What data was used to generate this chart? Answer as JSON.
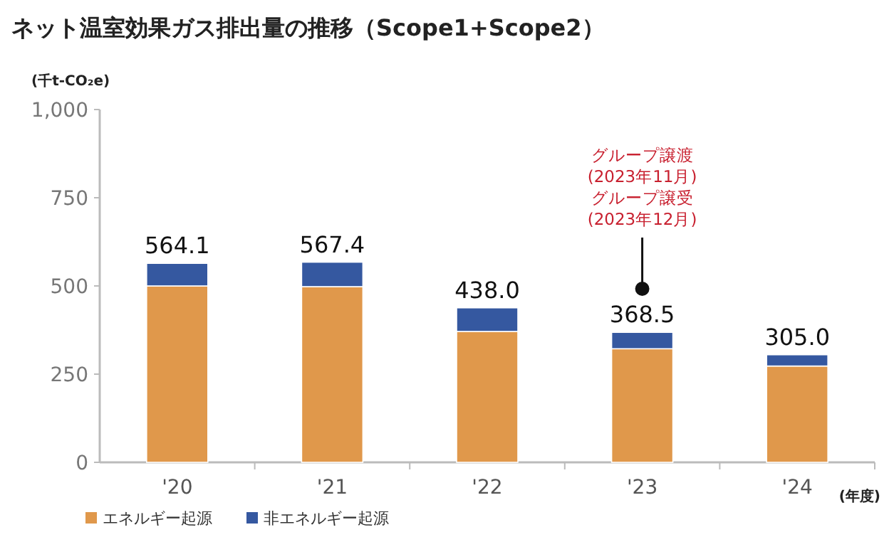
{
  "chart_data": {
    "type": "bar",
    "title": "ネット温室効果ガス排出量の推移（Scope1+Scope2）",
    "ylabel": "(千t-CO₂e)",
    "xlabel": "(年度)",
    "categories": [
      "'20",
      "'21",
      "'22",
      "'23",
      "'24"
    ],
    "stacked": true,
    "series": [
      {
        "name": "エネルギー起源",
        "color": "#e0984b",
        "values": [
          500,
          498,
          371,
          322,
          273
        ]
      },
      {
        "name": "非エネルギー起源",
        "color": "#3558a0",
        "values": [
          64.1,
          69.4,
          67.0,
          46.5,
          32.0
        ]
      }
    ],
    "totals": [
      "564.1",
      "567.4",
      "438.0",
      "368.5",
      "305.0"
    ],
    "ylim": [
      0,
      1000
    ],
    "yticks": [
      0,
      250,
      500,
      750,
      {
        "value": 1000,
        "label": "1,000"
      }
    ],
    "annotations": [
      {
        "text": "グループ譲渡\n(2023年11月)\nグループ譲受\n(2023年12月)",
        "x": "'23",
        "y": 492
      }
    ],
    "grid": false,
    "legend": "bottom"
  }
}
